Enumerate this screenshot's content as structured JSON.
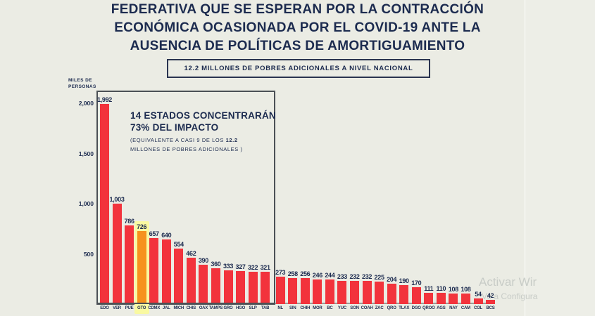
{
  "title": {
    "lines": [
      "FEDERATIVA QUE SE ESPERAN POR LA CONTRACCIÓN",
      "ECONÓMICA OCASIONADA POR EL COVID-19 ANTE LA",
      "AUSENCIA DE POLÍTICAS DE AMORTIGUAMIENTO"
    ]
  },
  "banner": {
    "text": "12.2 MILLONES DE POBRES ADICIONALES A NIVEL NACIONAL"
  },
  "annotation": {
    "heading_line1": "14 ESTADOS CONCENTRARÁN",
    "heading_line2": "73% DEL IMPACTO",
    "sub_prefix": "(EQUIVALENTE A CASI 9 DE LOS ",
    "sub_bold": "12.2",
    "sub_line2": "MILLONES DE POBRES ADICIONALES )"
  },
  "watermark": {
    "line1": "Activar Wir",
    "line2": "Ve a Configura"
  },
  "colors": {
    "background": "#EBECE4",
    "navy": "#1C2B4F",
    "bar_red": "#F2333C",
    "bar_orange": "#F6921E",
    "highlight_yellow": "#F9F9A1",
    "frame_border": "#4B5055",
    "watermark_gray": "#C8CCC7"
  },
  "chart_data": {
    "type": "bar",
    "title": "FEDERATIVA QUE SE ESPERAN POR LA CONTRACCIÓN ECONÓMICA OCASIONADA POR EL COVID-19 ANTE LA AUSENCIA DE POLÍTICAS DE AMORTIGUAMIENTO",
    "ylabel_lines": [
      "MILES DE",
      "PERSONAS"
    ],
    "ylim": [
      0,
      2000
    ],
    "grid": false,
    "legend": "none",
    "categories": [
      "EDO",
      "VER",
      "PUE",
      "GTO",
      "CDMX",
      "JAL",
      "MICH",
      "CHIS",
      "OAX",
      "TAMPS",
      "GRO",
      "HGO",
      "SLP",
      "TAB",
      "NL",
      "SIN",
      "CHIH",
      "MOR",
      "BC",
      "YUC",
      "SON",
      "COAH",
      "ZAC",
      "QRO",
      "TLAX",
      "DGO",
      "QROO",
      "AGS",
      "NAY",
      "CAM",
      "COL",
      "BCS"
    ],
    "values": [
      1992,
      1003,
      786,
      726,
      657,
      640,
      554,
      462,
      390,
      360,
      333,
      327,
      322,
      321,
      273,
      258,
      256,
      246,
      244,
      233,
      232,
      232,
      225,
      204,
      190,
      170,
      111,
      110,
      108,
      108,
      54,
      42
    ],
    "value_labels": [
      "1,992",
      "1,003",
      "786",
      "726",
      "657",
      "640",
      "554",
      "462",
      "390",
      "360",
      "333",
      "327",
      "322",
      "321",
      "273",
      "258",
      "256",
      "246",
      "244",
      "233",
      "232",
      "232",
      "225",
      "204",
      "190",
      "170",
      "111",
      "110",
      "108",
      "108",
      "54",
      "42"
    ],
    "yticks": [
      {
        "label": "2,000",
        "value": 2000
      },
      {
        "label": "1,500",
        "value": 1500
      },
      {
        "label": "1,000",
        "value": 1000
      },
      {
        "label": "500",
        "value": 500
      }
    ],
    "framed_group_count": 14,
    "highlight": {
      "index": 3,
      "bar_color": "#F6921E",
      "background_color": "#F9F9A1"
    },
    "bar_color": "#F2333C"
  }
}
